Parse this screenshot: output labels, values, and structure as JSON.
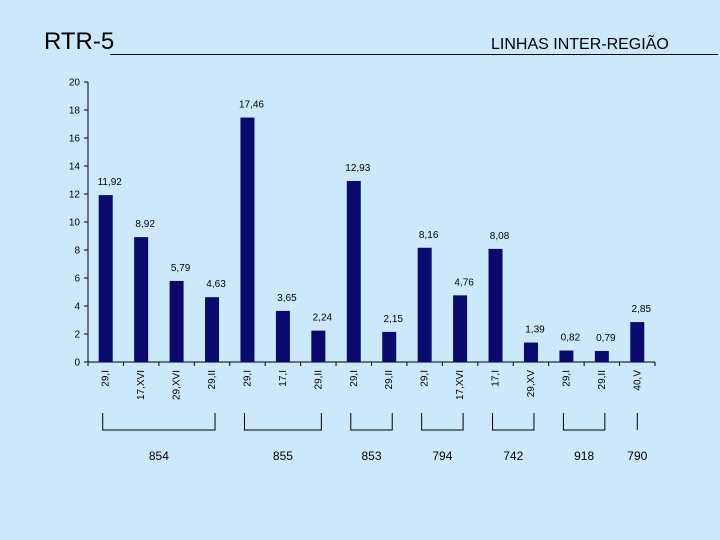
{
  "header": {
    "title": "RTR-5",
    "subtitle": "LINHAS INTER-REGIÃO"
  },
  "colors": {
    "bar": "#0a0a6e",
    "background": "#cce9fb"
  },
  "chart_data": {
    "type": "bar",
    "categories": [
      "29,I",
      "17,XVI",
      "29,XVI",
      "29,II",
      "29,I",
      "17,I",
      "29,II",
      "29,I",
      "29,II",
      "29,I",
      "17,XVI",
      "17,I",
      "29,XV",
      "29,I",
      "29,II",
      "40,V"
    ],
    "values": [
      11.92,
      8.92,
      5.79,
      4.63,
      17.46,
      3.65,
      2.24,
      12.93,
      2.15,
      8.16,
      4.76,
      8.08,
      1.39,
      0.82,
      0.79,
      2.85
    ],
    "value_labels": [
      "11,92",
      "8,92",
      "5,79",
      "4,63",
      "17,46",
      "3,65",
      "2,24",
      "12,93",
      "2,15",
      "8,16",
      "4,76",
      "8,08",
      "1,39",
      "0,82",
      "0,79",
      "2,85"
    ],
    "ylim": [
      0,
      20
    ],
    "yticks": [
      0,
      2,
      4,
      6,
      8,
      10,
      12,
      14,
      16,
      18,
      20
    ],
    "grid": false,
    "legend": "none",
    "groups": [
      {
        "label": "854",
        "start": 0,
        "end": 3
      },
      {
        "label": "855",
        "start": 4,
        "end": 6
      },
      {
        "label": "853",
        "start": 7,
        "end": 8
      },
      {
        "label": "794",
        "start": 9,
        "end": 10
      },
      {
        "label": "742",
        "start": 11,
        "end": 12
      },
      {
        "label": "918",
        "start": 13,
        "end": 14
      },
      {
        "label": "790",
        "start": 15,
        "end": 15
      }
    ]
  }
}
